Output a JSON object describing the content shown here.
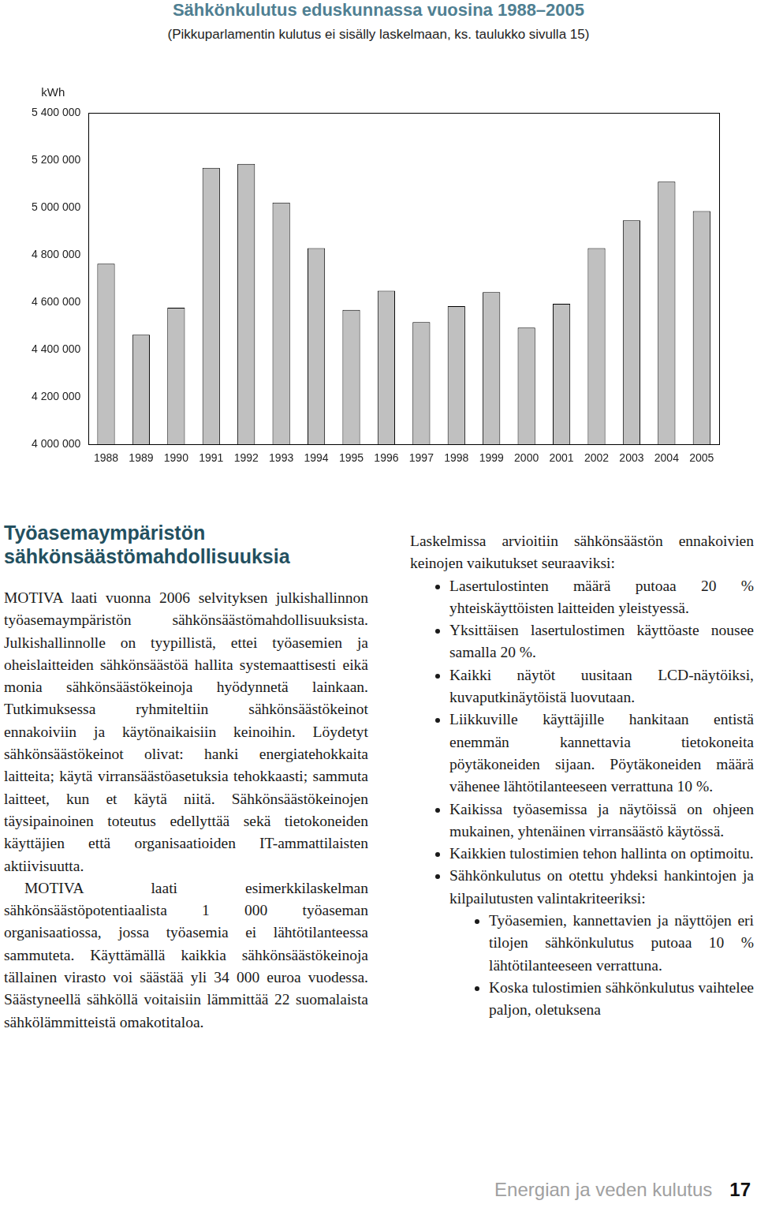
{
  "header": {
    "title": "Sähkönkulutus eduskunnassa vuosina 1988–2005",
    "subtitle": "(Pikkuparlamentin kulutus ei sisälly laskelmaan, ks. taulukko sivulla 15)"
  },
  "chart_data": {
    "type": "bar",
    "y_label": "kWh",
    "categories": [
      "1988",
      "1989",
      "1990",
      "1991",
      "1992",
      "1993",
      "1994",
      "1995",
      "1996",
      "1997",
      "1998",
      "1999",
      "2000",
      "2001",
      "2002",
      "2003",
      "2004",
      "2005"
    ],
    "values": [
      4763000,
      4463000,
      4577000,
      5168000,
      5184000,
      5021000,
      4829000,
      4568000,
      4649000,
      4516000,
      4584000,
      4643000,
      4493000,
      4594000,
      4829000,
      4946000,
      5109000,
      4985000
    ],
    "color": "#c0c0c0",
    "ylim": [
      4000000,
      5400000
    ],
    "yticks": [
      {
        "value": 4000000,
        "label": "4 000 000"
      },
      {
        "value": 4200000,
        "label": "4 200 000"
      },
      {
        "value": 4400000,
        "label": "4 400 000"
      },
      {
        "value": 4600000,
        "label": "4 600 000"
      },
      {
        "value": 4800000,
        "label": "4 800 000"
      },
      {
        "value": 5000000,
        "label": "5 000 000"
      },
      {
        "value": 5200000,
        "label": "5 200 000"
      },
      {
        "value": 5400000,
        "label": "5 400 000"
      }
    ],
    "grid": false
  },
  "article": {
    "heading": "Työasemaympäristön sähkönsäästömahdollisuuksia",
    "left_paragraphs": [
      "MOTIVA laati vuonna 2006 selvityksen julkishallinnon työasemaympäristön sähkönsäästömahdollisuuksista. Julkishallinnolle on tyypillistä, ettei työasemien ja oheislaitteiden sähkönsäästöä hallita systemaattisesti eikä monia sähkönsäästökeinoja hyödynnetä lainkaan. Tutkimuksessa ryhmiteltiin sähkönsäästökeinot ennakoiviin ja käytönaikaisiin keinoihin. Löydetyt sähkönsäästökeinot olivat: hanki energiatehokkaita laitteita; käytä virransäästöasetuksia tehokkaasti; sammuta laitteet, kun et käytä niitä. Sähkönsäästökeinojen täysipainoinen toteutus edellyttää sekä tietokoneiden käyttäjien että organisaatioiden IT-ammattilaisten aktiivisuutta.",
      "MOTIVA laati esimerkkilaskelman sähkönsäästöpotentiaalista 1 000 työaseman organisaatiossa, jossa työasemia ei lähtötilanteessa sammuteta. Käyttämällä kaikkia sähkönsäästökeinoja tällainen virasto voi säästää yli 34 000 euroa vuodessa. Säästyneellä sähköllä voitaisiin lämmittää 22 suomalaista sähkölämmitteistä omakotitaloa."
    ],
    "right_intro": "Laskelmissa arvioitiin sähkönsäästön ennakoivien keinojen vaikutukset seuraaviksi:",
    "bullets": [
      "Lasertulostinten määrä putoaa 20 % yhteiskäyttöisten laitteiden yleistyessä.",
      "Yksittäisen lasertulostimen käyttöaste nousee samalla 20 %.",
      "Kaikki näytöt uusitaan LCD-näytöiksi, kuvaputkinäytöistä luovutaan.",
      "Liikkuville käyttäjille hankitaan entistä enemmän kannettavia tietokoneita pöytäkoneiden sijaan. Pöytäkoneiden määrä vähenee lähtötilanteeseen verrattuna 10 %.",
      "Kaikissa työasemissa ja näytöissä on ohjeen mukainen, yhtenäinen virransäästö käytössä.",
      "Kaikkien tulostimien tehon hallinta on optimoitu.",
      "Sähkönkulutus on otettu yhdeksi hankintojen ja kilpailutusten valintakriteeriksi:"
    ],
    "sub_bullets": [
      "Työasemien, kannettavien ja näyttöjen eri tilojen sähkönkulutus putoaa 10 % lähtötilanteeseen verrattuna.",
      "Koska tulostimien sähkönkulutus vaihtelee paljon, oletuksena"
    ]
  },
  "footer": {
    "section": "Energian ja veden kulutus",
    "page": 17
  }
}
